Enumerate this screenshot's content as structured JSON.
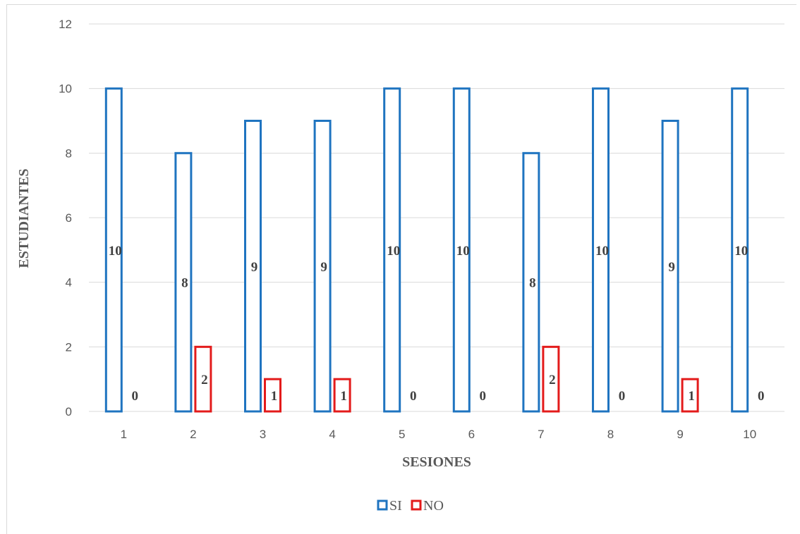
{
  "chart_data": {
    "type": "bar",
    "categories": [
      "1",
      "2",
      "3",
      "4",
      "5",
      "6",
      "7",
      "8",
      "9",
      "10"
    ],
    "series": [
      {
        "name": "SI",
        "values": [
          10,
          8,
          9,
          9,
          10,
          10,
          8,
          10,
          9,
          10
        ],
        "color": "#1f74c0"
      },
      {
        "name": "NO",
        "values": [
          0,
          2,
          1,
          1,
          0,
          0,
          2,
          0,
          1,
          0
        ],
        "color": "#e31b1b"
      }
    ],
    "xlabel": "SESIONES",
    "ylabel": "ESTUDIANTES",
    "ylim": [
      0,
      12
    ],
    "yticks": [
      "0",
      "2",
      "4",
      "6",
      "8",
      "10",
      "12"
    ],
    "grid": true,
    "gridline_color": "#d9d9d9",
    "data_labels": true,
    "legend_position": "bottom"
  }
}
